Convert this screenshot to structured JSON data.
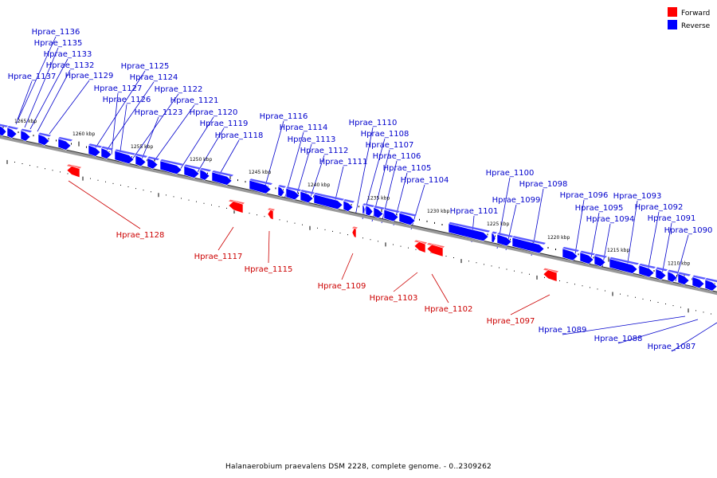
{
  "caption": "Halanaerobium praevalens DSM 2228, complete genome. - 0..2309262",
  "legend": [
    {
      "label": "Forward",
      "color": "#ff0000"
    },
    {
      "label": "Reverse",
      "color": "#0000ff"
    }
  ],
  "colors": {
    "forward": "#ff0000",
    "reverse": "#0000ff",
    "forward_label": "#cc0000",
    "reverse_label": "#0000cc"
  },
  "scale_labels": [
    "1265 kbp",
    "1260 kbp",
    "1255 kbp",
    "1250 kbp",
    "1245 kbp",
    "1240 kbp",
    "1235 kbp",
    "1230 kbp",
    "1225 kbp",
    "1220 kbp",
    "1215 kbp",
    "1210 kbp"
  ],
  "genes": {
    "forward": [
      "Hprae_1128",
      "Hprae_1117",
      "Hprae_1115",
      "Hprae_1109",
      "Hprae_1103",
      "Hprae_1102",
      "Hprae_1097"
    ],
    "reverse": [
      "Hprae_1136",
      "Hprae_1135",
      "Hprae_1133",
      "Hprae_1132",
      "Hprae_1137",
      "Hprae_1129",
      "Hprae_1125",
      "Hprae_1124",
      "Hprae_1127",
      "Hprae_1126",
      "Hprae_1122",
      "Hprae_1121",
      "Hprae_1123",
      "Hprae_1120",
      "Hprae_1119",
      "Hprae_1118",
      "Hprae_1116",
      "Hprae_1114",
      "Hprae_1113",
      "Hprae_1112",
      "Hprae_1111",
      "Hprae_1110",
      "Hprae_1108",
      "Hprae_1107",
      "Hprae_1106",
      "Hprae_1105",
      "Hprae_1104",
      "Hprae_1101",
      "Hprae_1100",
      "Hprae_1099",
      "Hprae_1098",
      "Hprae_1096",
      "Hprae_1095",
      "Hprae_1094",
      "Hprae_1093",
      "Hprae_1092",
      "Hprae_1091",
      "Hprae_1090",
      "Hprae_1089",
      "Hprae_1088",
      "Hprae_1087"
    ]
  }
}
